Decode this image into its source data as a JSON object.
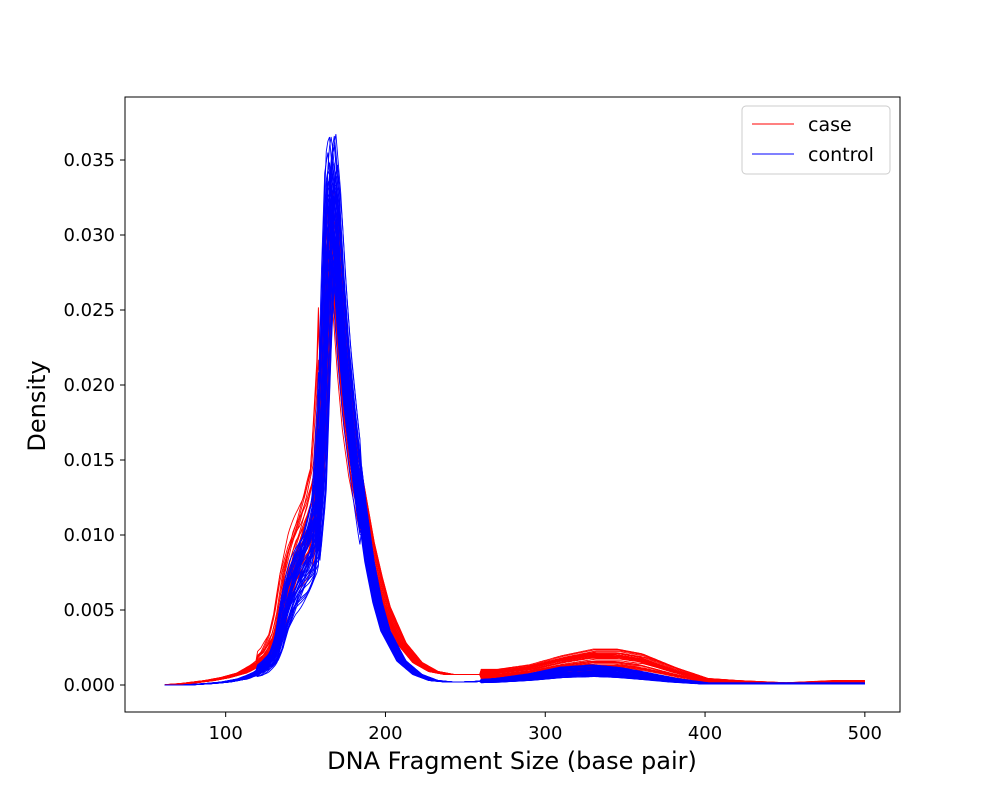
{
  "chart_data": {
    "type": "line",
    "title": "",
    "xlabel": "DNA Fragment Size (base pair)",
    "ylabel": "Density",
    "xlim": [
      37,
      522
    ],
    "ylim": [
      -0.0018,
      0.0392
    ],
    "x_ticks": [
      100,
      200,
      300,
      400,
      500
    ],
    "y_ticks": [
      0.0,
      0.005,
      0.01,
      0.015,
      0.02,
      0.025,
      0.03,
      0.035
    ],
    "x_tick_labels": [
      "100",
      "200",
      "300",
      "400",
      "500"
    ],
    "y_tick_labels": [
      "0.000",
      "0.005",
      "0.010",
      "0.015",
      "0.020",
      "0.025",
      "0.030",
      "0.035"
    ],
    "grid": false,
    "legend_position": "top-right",
    "series": [
      {
        "name": "case",
        "color": "#ff0000",
        "curve_count": 40,
        "x": [
          62,
          75,
          90,
          100,
          110,
          120,
          125,
          130,
          133,
          137,
          142,
          148,
          152,
          156,
          160,
          163,
          165,
          167,
          170,
          173,
          176,
          180,
          185,
          190,
          195,
          200,
          210,
          220,
          230,
          240,
          250,
          270,
          290,
          310,
          330,
          345,
          360,
          380,
          400,
          420,
          450,
          480,
          500
        ],
        "values": [
          0.0,
          0.0001,
          0.0003,
          0.0005,
          0.0008,
          0.0014,
          0.0018,
          0.0026,
          0.0036,
          0.0058,
          0.0075,
          0.0088,
          0.0098,
          0.0112,
          0.0165,
          0.025,
          0.0295,
          0.0305,
          0.028,
          0.023,
          0.019,
          0.0155,
          0.0125,
          0.0095,
          0.0072,
          0.0052,
          0.0028,
          0.0015,
          0.0009,
          0.0007,
          0.0007,
          0.0007,
          0.0009,
          0.0013,
          0.0016,
          0.0016,
          0.0014,
          0.0008,
          0.0003,
          0.0002,
          0.0001,
          0.0002,
          0.0002
        ]
      },
      {
        "name": "control",
        "color": "#0000ff",
        "curve_count": 50,
        "x": [
          62,
          75,
          90,
          100,
          110,
          120,
          125,
          130,
          133,
          137,
          142,
          148,
          152,
          156,
          160,
          163,
          165,
          167,
          170,
          173,
          176,
          180,
          185,
          190,
          195,
          200,
          210,
          220,
          230,
          240,
          250,
          270,
          290,
          310,
          330,
          345,
          360,
          380,
          400,
          420,
          450,
          480,
          500
        ],
        "values": [
          0.0,
          0.0,
          0.0001,
          0.0002,
          0.0004,
          0.0008,
          0.0012,
          0.0018,
          0.0026,
          0.0045,
          0.0062,
          0.0075,
          0.0083,
          0.0095,
          0.015,
          0.0258,
          0.0318,
          0.033,
          0.0295,
          0.0245,
          0.0205,
          0.0165,
          0.012,
          0.0082,
          0.0055,
          0.0036,
          0.0016,
          0.0007,
          0.0003,
          0.0002,
          0.0002,
          0.0003,
          0.0005,
          0.0008,
          0.0009,
          0.0008,
          0.0006,
          0.0003,
          0.0001,
          0.0001,
          0.0001,
          0.0001,
          0.0001
        ]
      }
    ]
  },
  "legend": {
    "case_label": "case",
    "control_label": "control"
  }
}
